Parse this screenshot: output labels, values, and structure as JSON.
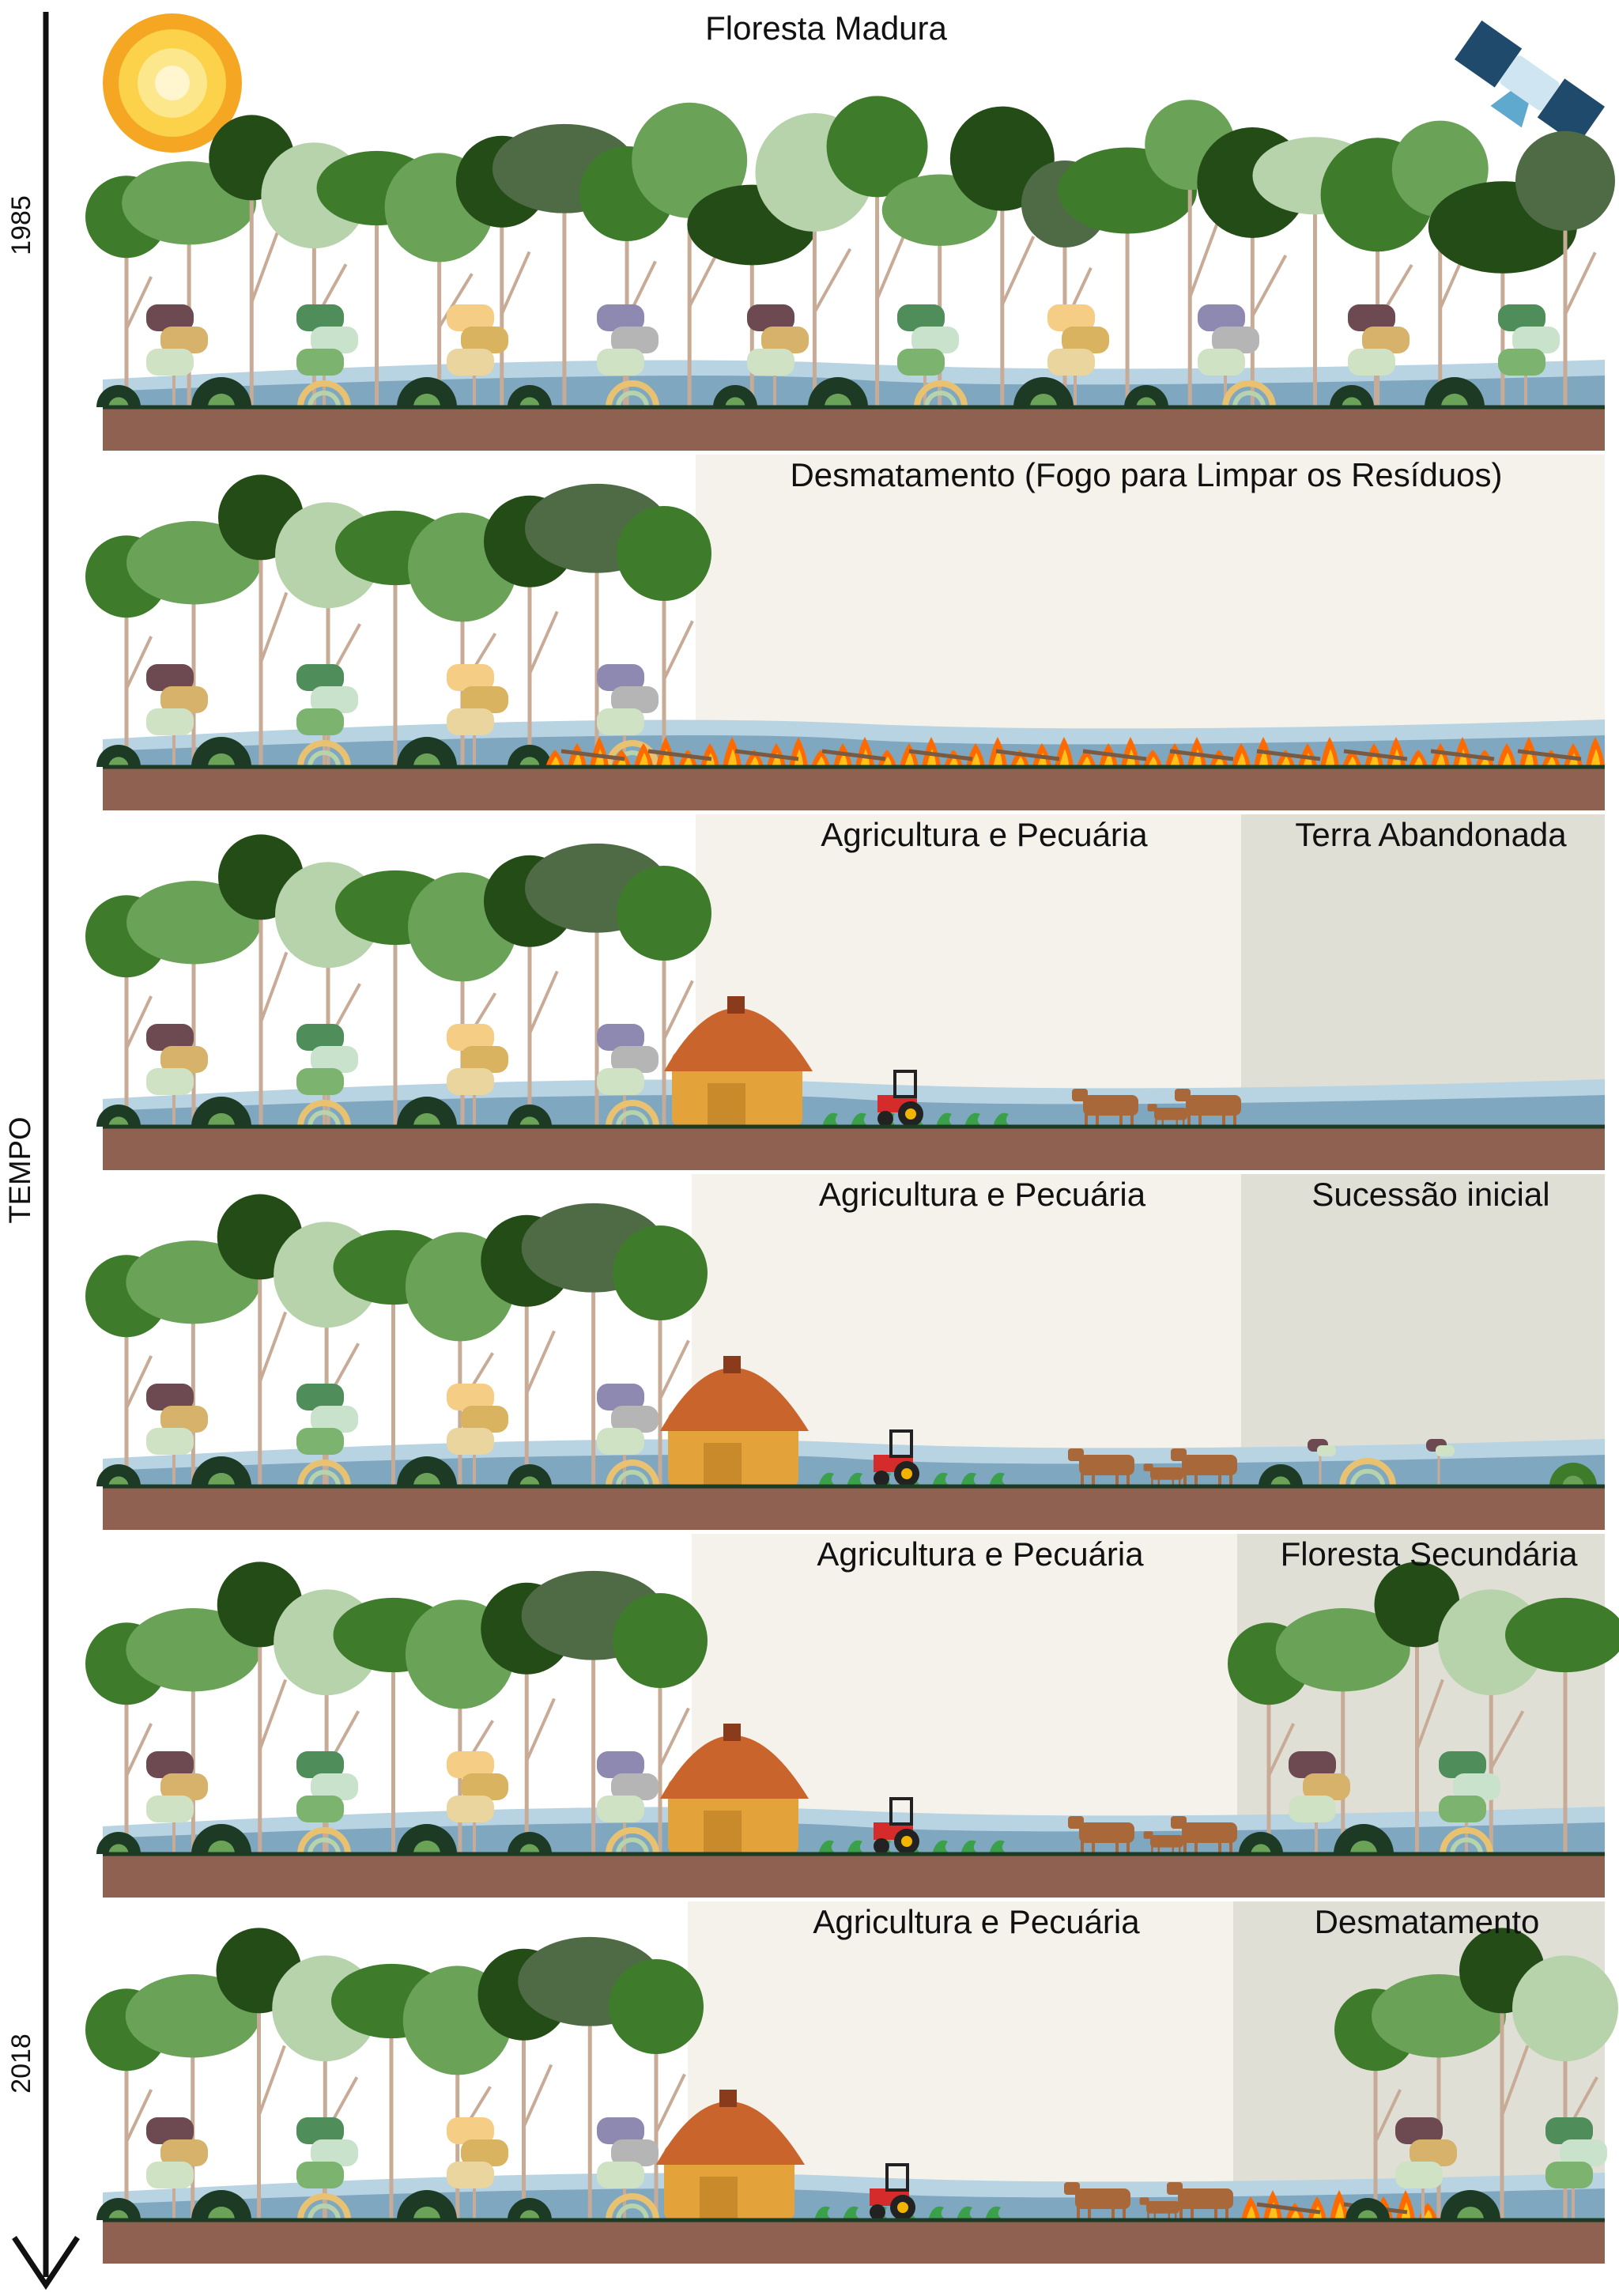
{
  "timeline": {
    "start_year": "1985",
    "axis_label": "TEMPO",
    "end_year": "2018"
  },
  "icons": {
    "sun": "sun-icon",
    "satellite": "satellite-icon"
  },
  "colors": {
    "soil": "#8f6150",
    "ground_line": "#1c3a24",
    "water_dark": "#7fa7bf",
    "water_light": "#b8d3e2",
    "clearing_bg": "#f4f2ea",
    "abandoned_bg": "#e0dfd6",
    "forest_dark": "#244c17",
    "forest_mid": "#3e7c2c",
    "forest_light": "#6aa357",
    "forest_pale": "#b7d3ab",
    "trunk": "#c8ab97",
    "fire": "#ff6a00",
    "hut": "#e3a23a",
    "roof": "#c9652c",
    "cattle": "#a9683a",
    "tractor": "#d62b2b"
  },
  "panels": [
    {
      "labels": [
        "Floresta Madura"
      ]
    },
    {
      "labels": [
        "Desmatamento (Fogo para Limpar os Resíduos)"
      ]
    },
    {
      "labels": [
        "Agricultura e Pecuária",
        "Terra Abandonada"
      ]
    },
    {
      "labels": [
        "Agricultura e Pecuária",
        "Sucessão inicial"
      ]
    },
    {
      "labels": [
        "Agricultura e Pecuária",
        "Floresta Secundária"
      ]
    },
    {
      "labels": [
        "Agricultura e Pecuária",
        "Desmatamento"
      ]
    }
  ]
}
